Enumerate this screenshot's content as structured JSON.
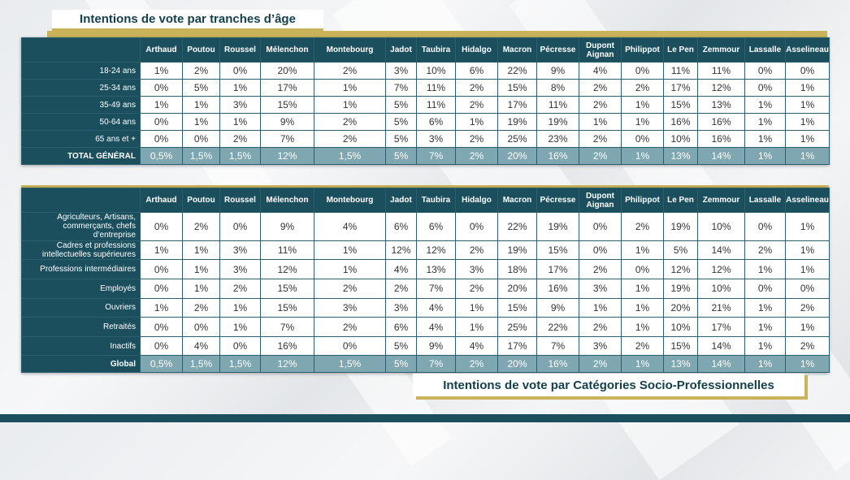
{
  "chart_data": [
    {
      "type": "table",
      "title": "Intentions de vote par tranches d’âge",
      "columns": [
        "Arthaud",
        "Poutou",
        "Roussel",
        "Mélenchon",
        "Montebourg",
        "Jadot",
        "Taubira",
        "Hidalgo",
        "Macron",
        "Pécresse",
        "Dupont Aignan",
        "Philippot",
        "Le Pen",
        "Zemmour",
        "Lassalle",
        "Asselineau"
      ],
      "rows": [
        {
          "label": "18-24 ans",
          "values": [
            "1%",
            "2%",
            "0%",
            "20%",
            "2%",
            "3%",
            "10%",
            "6%",
            "22%",
            "9%",
            "4%",
            "0%",
            "11%",
            "11%",
            "0%",
            "0%"
          ]
        },
        {
          "label": "25-34 ans",
          "values": [
            "0%",
            "5%",
            "1%",
            "17%",
            "1%",
            "7%",
            "11%",
            "2%",
            "15%",
            "8%",
            "2%",
            "2%",
            "17%",
            "12%",
            "0%",
            "1%"
          ]
        },
        {
          "label": "35-49 ans",
          "values": [
            "1%",
            "1%",
            "3%",
            "15%",
            "1%",
            "5%",
            "11%",
            "2%",
            "17%",
            "11%",
            "2%",
            "1%",
            "15%",
            "13%",
            "1%",
            "1%"
          ]
        },
        {
          "label": "50-64 ans",
          "values": [
            "0%",
            "1%",
            "1%",
            "9%",
            "2%",
            "5%",
            "6%",
            "1%",
            "19%",
            "19%",
            "1%",
            "1%",
            "16%",
            "16%",
            "1%",
            "1%"
          ]
        },
        {
          "label": "65 ans et +",
          "values": [
            "0%",
            "0%",
            "2%",
            "7%",
            "2%",
            "5%",
            "3%",
            "2%",
            "25%",
            "23%",
            "2%",
            "0%",
            "10%",
            "16%",
            "1%",
            "1%"
          ]
        }
      ],
      "total": {
        "label": "TOTAL GÉNÉRAL",
        "values": [
          "0,5%",
          "1,5%",
          "1,5%",
          "12%",
          "1,5%",
          "5%",
          "7%",
          "2%",
          "20%",
          "16%",
          "2%",
          "1%",
          "13%",
          "14%",
          "1%",
          "1%"
        ]
      }
    },
    {
      "type": "table",
      "title": "Intentions de vote par Catégories Socio-Professionnelles",
      "columns": [
        "Arthaud",
        "Poutou",
        "Roussel",
        "Mélenchon",
        "Montebourg",
        "Jadot",
        "Taubira",
        "Hidalgo",
        "Macron",
        "Pécresse",
        "Dupont Aignan",
        "Philippot",
        "Le Pen",
        "Zemmour",
        "Lassalle",
        "Asselineau"
      ],
      "rows": [
        {
          "label": "Agriculteurs, Artisans, commerçants, chefs d’entreprise",
          "values": [
            "0%",
            "2%",
            "0%",
            "9%",
            "4%",
            "6%",
            "6%",
            "0%",
            "22%",
            "19%",
            "0%",
            "2%",
            "19%",
            "10%",
            "0%",
            "1%"
          ]
        },
        {
          "label": "Cadres et professions intellectuelles supérieures",
          "values": [
            "1%",
            "1%",
            "3%",
            "11%",
            "1%",
            "12%",
            "12%",
            "2%",
            "19%",
            "15%",
            "0%",
            "1%",
            "5%",
            "14%",
            "2%",
            "1%"
          ]
        },
        {
          "label": "Professions intermédiaires",
          "values": [
            "0%",
            "1%",
            "3%",
            "12%",
            "1%",
            "4%",
            "13%",
            "3%",
            "18%",
            "17%",
            "2%",
            "0%",
            "12%",
            "12%",
            "1%",
            "1%"
          ]
        },
        {
          "label": "Employés",
          "values": [
            "0%",
            "1%",
            "2%",
            "15%",
            "2%",
            "2%",
            "7%",
            "2%",
            "20%",
            "16%",
            "3%",
            "1%",
            "19%",
            "10%",
            "0%",
            "0%"
          ]
        },
        {
          "label": "Ouvriers",
          "values": [
            "1%",
            "2%",
            "1%",
            "15%",
            "3%",
            "3%",
            "4%",
            "1%",
            "15%",
            "9%",
            "1%",
            "1%",
            "20%",
            "21%",
            "1%",
            "2%"
          ]
        },
        {
          "label": "Retraités",
          "values": [
            "0%",
            "0%",
            "1%",
            "7%",
            "2%",
            "6%",
            "4%",
            "1%",
            "25%",
            "22%",
            "2%",
            "1%",
            "10%",
            "17%",
            "1%",
            "1%"
          ]
        },
        {
          "label": "Inactifs",
          "values": [
            "0%",
            "4%",
            "0%",
            "16%",
            "0%",
            "5%",
            "9%",
            "4%",
            "17%",
            "7%",
            "3%",
            "2%",
            "15%",
            "14%",
            "1%",
            "2%"
          ]
        }
      ],
      "total": {
        "label": "Global",
        "values": [
          "0,5%",
          "1,5%",
          "1,5%",
          "12%",
          "1,5%",
          "5%",
          "7%",
          "2%",
          "20%",
          "16%",
          "2%",
          "1%",
          "13%",
          "14%",
          "1%",
          "1%"
        ]
      }
    }
  ]
}
